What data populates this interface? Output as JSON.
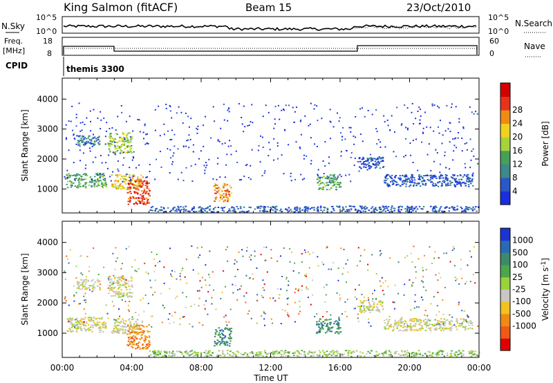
{
  "header": {
    "title": "King Salmon (fitACF)",
    "beam": "Beam 15",
    "date": "23/Oct/2010"
  },
  "strip": {
    "nsky_label": "N.Sky",
    "nsky_ticks": [
      "10^5",
      "10^0"
    ],
    "nsearch_label": "N.Search",
    "nsearch_ticks": [
      "10^5",
      "10^0"
    ],
    "freq_label": "Freq.",
    "freq_unit": "[MHz]",
    "freq_ticks": [
      "18",
      "8"
    ],
    "nave_label": "Nave",
    "nave_ticks": [
      "60",
      "0"
    ],
    "cpid_label": "CPID",
    "cpid_value": "themis 3300"
  },
  "chart_data": [
    {
      "type": "heatmap",
      "parameter": "Power",
      "ylabel": "Slant Range [km]",
      "ylim": [
        200,
        4700
      ],
      "yticks": [
        "1000",
        "2000",
        "3000",
        "4000"
      ],
      "xlim": [
        0,
        24
      ],
      "colorbar_label": "Power [dB]",
      "colorbar_ticks": [
        "4",
        "8",
        "12",
        "16",
        "20",
        "24",
        "28"
      ],
      "colorbar_colors": [
        "#1a2ee0",
        "#2a57c9",
        "#3c8a8a",
        "#45a05a",
        "#a6d23a",
        "#f0d21e",
        "#f08a14",
        "#e8321e",
        "#d40000"
      ],
      "regions": [
        {
          "t": [
            0.2,
            2.5
          ],
          "r": [
            1050,
            1550
          ],
          "v": 3
        },
        {
          "t": [
            0.8,
            2.2
          ],
          "r": [
            2450,
            2800
          ],
          "v": 2
        },
        {
          "t": [
            2.6,
            4.0
          ],
          "r": [
            2200,
            2900
          ],
          "v": 4
        },
        {
          "t": [
            2.8,
            4.6
          ],
          "r": [
            1000,
            1500
          ],
          "v": 5
        },
        {
          "t": [
            3.7,
            5.0
          ],
          "r": [
            500,
            1300
          ],
          "v": 7
        },
        {
          "t": [
            8.7,
            9.7
          ],
          "r": [
            600,
            1200
          ],
          "v": 6
        },
        {
          "t": [
            5.0,
            24.0
          ],
          "r": [
            250,
            450
          ],
          "v": 1
        },
        {
          "t": [
            14.6,
            16.0
          ],
          "r": [
            1000,
            1500
          ],
          "v": 3
        },
        {
          "t": [
            17.0,
            18.5
          ],
          "r": [
            1700,
            2100
          ],
          "v": 1
        },
        {
          "t": [
            18.5,
            23.6
          ],
          "r": [
            1100,
            1500
          ],
          "v": 1
        }
      ]
    },
    {
      "type": "heatmap",
      "parameter": "Velocity",
      "ylabel": "Slant Range [km]",
      "ylim": [
        200,
        4700
      ],
      "yticks": [
        "1000",
        "2000",
        "3000",
        "4000"
      ],
      "xlabel": "Time UT",
      "xticks": [
        "00:00",
        "04:00",
        "08:00",
        "12:00",
        "16:00",
        "20:00",
        "00:00"
      ],
      "xlim": [
        0,
        24
      ],
      "colorbar_label": "Velocity [m s",
      "colorbar_label_sup": "-1",
      "colorbar_label_end": "]",
      "colorbar_ticks": [
        "1000",
        "500",
        "100",
        "25",
        "-25",
        "-100",
        "-500",
        "-1000"
      ],
      "colorbar_colors": [
        "#1c34d4",
        "#2a6ab4",
        "#3c8a6a",
        "#4aa84a",
        "#9ad23a",
        "#c8c8c0",
        "#f2c21e",
        "#f08a14",
        "#f05a14",
        "#e00000"
      ],
      "regions": [
        {
          "t": [
            0.2,
            2.5
          ],
          "r": [
            1050,
            1550
          ],
          "v": 5
        },
        {
          "t": [
            0.8,
            2.2
          ],
          "r": [
            2450,
            2800
          ],
          "v": 5
        },
        {
          "t": [
            2.6,
            4.0
          ],
          "r": [
            2200,
            2900
          ],
          "v": 5
        },
        {
          "t": [
            2.8,
            4.6
          ],
          "r": [
            1000,
            1500
          ],
          "v": 5
        },
        {
          "t": [
            3.7,
            5.0
          ],
          "r": [
            500,
            1300
          ],
          "v": 7
        },
        {
          "t": [
            8.7,
            9.7
          ],
          "r": [
            600,
            1200
          ],
          "v": 2
        },
        {
          "t": [
            5.0,
            24.0
          ],
          "r": [
            250,
            450
          ],
          "v": 4
        },
        {
          "t": [
            14.6,
            16.0
          ],
          "r": [
            1000,
            1500
          ],
          "v": 2
        },
        {
          "t": [
            17.0,
            18.5
          ],
          "r": [
            1700,
            2100
          ],
          "v": 5
        },
        {
          "t": [
            18.5,
            23.6
          ],
          "r": [
            1100,
            1500
          ],
          "v": 5
        }
      ]
    }
  ]
}
